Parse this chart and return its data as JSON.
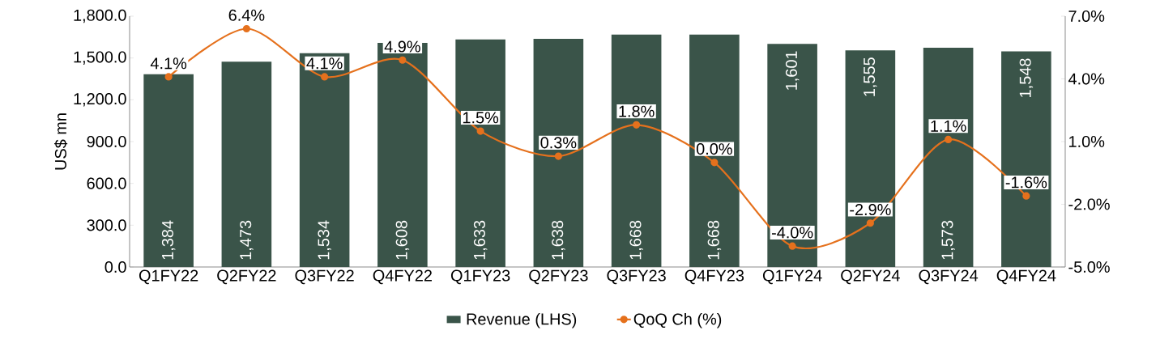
{
  "chart_data": {
    "type": "bar",
    "ylabel": "US$ mn",
    "categories": [
      "Q1FY22",
      "Q2FY22",
      "Q3FY22",
      "Q4FY22",
      "Q1FY23",
      "Q2FY23",
      "Q3FY23",
      "Q4FY23",
      "Q1FY24",
      "Q2FY24",
      "Q3FY24",
      "Q4FY24"
    ],
    "series": [
      {
        "name": "Revenue (LHS)",
        "color": "#3a5449",
        "values": [
          1384,
          1473,
          1534,
          1608,
          1633,
          1638,
          1668,
          1668,
          1601,
          1555,
          1573,
          1548
        ],
        "value_labels": [
          "1,384",
          "1,473",
          "1,534",
          "1,608",
          "1,633",
          "1,638",
          "1,668",
          "1,668",
          "1,601",
          "1,555",
          "1,573",
          "1,548"
        ]
      },
      {
        "name": "QoQ Ch (%)",
        "type": "line",
        "axis": "y2",
        "color": "#e5711d",
        "marker": "circle",
        "values": [
          4.1,
          6.4,
          4.1,
          4.9,
          1.5,
          0.3,
          1.8,
          0.0,
          -4.0,
          -2.9,
          1.1,
          -1.6
        ],
        "value_labels": [
          "4.1%",
          "6.4%",
          "4.1%",
          "4.9%",
          "1.5%",
          "0.3%",
          "1.8%",
          "0.0%",
          "-4.0%",
          "-2.9%",
          "1.1%",
          "-1.6%"
        ]
      }
    ],
    "ylim": [
      0,
      1800
    ],
    "yticks": [
      {
        "value": 0,
        "label": "0.0"
      },
      {
        "value": 300,
        "label": "300.0"
      },
      {
        "value": 600,
        "label": "600.0"
      },
      {
        "value": 900,
        "label": "900.0"
      },
      {
        "value": 1200,
        "label": "1,200.0"
      },
      {
        "value": 1500,
        "label": "1,500.0"
      },
      {
        "value": 1800,
        "label": "1,800.0"
      }
    ],
    "y2lim": [
      -5,
      7
    ],
    "y2ticks": [
      {
        "value": -5,
        "label": "-5.0%"
      },
      {
        "value": -2,
        "label": "-2.0%"
      },
      {
        "value": 1,
        "label": "1.0%"
      },
      {
        "value": 4,
        "label": "4.0%"
      },
      {
        "value": 7,
        "label": "7.0%"
      }
    ],
    "legend": "bottom"
  }
}
